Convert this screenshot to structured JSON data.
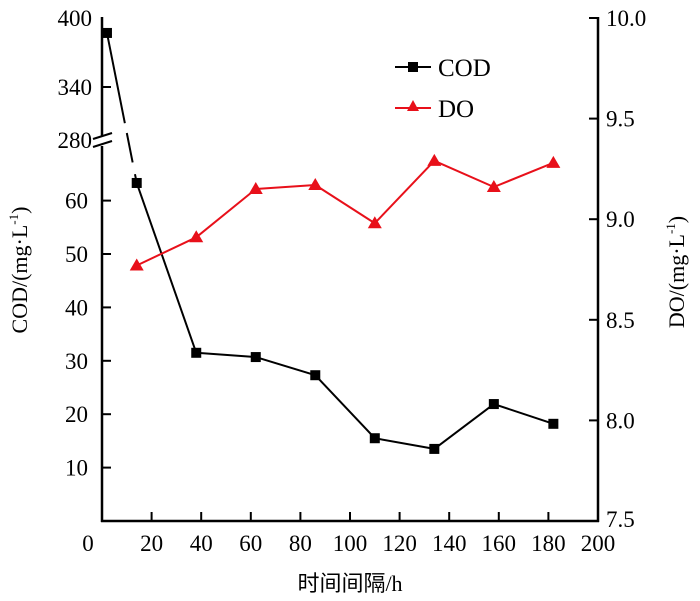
{
  "chart_data": {
    "type": "line",
    "title": "",
    "xlabel": "时间间隔/h",
    "ylabel_left": "COD/(mg·L",
    "ylabel_left_sup": "-1",
    "ylabel_right": "DO/(mg·L",
    "ylabel_right_sup": "-1",
    "xlim": [
      0,
      200
    ],
    "xticks": [
      "0",
      "20",
      "40",
      "60",
      "80",
      "100",
      "120",
      "140",
      "160",
      "180",
      "200"
    ],
    "xtick_values": [
      0,
      20,
      40,
      60,
      80,
      100,
      120,
      140,
      160,
      180,
      200
    ],
    "ylim_left_lower": [
      0,
      70
    ],
    "ylim_left_upper": [
      280,
      400
    ],
    "yticks_left_lower": [
      "10",
      "20",
      "30",
      "40",
      "50",
      "60"
    ],
    "yticks_left_lower_values": [
      10,
      20,
      30,
      40,
      50,
      60
    ],
    "yticks_left_upper": [
      "280",
      "340",
      "400"
    ],
    "yticks_left_upper_values": [
      280,
      340,
      400
    ],
    "ylim_right": [
      7.5,
      10.0
    ],
    "yticks_right": [
      "7.5",
      "8.0",
      "8.5",
      "9.0",
      "9.5",
      "10.0"
    ],
    "yticks_right_values": [
      7.5,
      8.0,
      8.5,
      9.0,
      9.5,
      10.0
    ],
    "axis_break": "left axis broken between 60 and 280",
    "legend_position": "top-right",
    "grid": false,
    "series": [
      {
        "name": "COD",
        "axis": "left",
        "color": "#000000",
        "marker": "square",
        "x": [
          2,
          14,
          38,
          62,
          86,
          110,
          134,
          158,
          182
        ],
        "values": [
          387,
          63.3,
          31.5,
          30.7,
          27.3,
          15.5,
          13.5,
          21.9,
          18.2
        ]
      },
      {
        "name": "DO",
        "axis": "right",
        "color": "#e8101a",
        "marker": "triangle",
        "x": [
          14,
          38,
          62,
          86,
          110,
          134,
          158,
          182
        ],
        "values": [
          8.77,
          8.91,
          9.15,
          9.17,
          8.98,
          9.29,
          9.16,
          9.28
        ]
      }
    ]
  }
}
